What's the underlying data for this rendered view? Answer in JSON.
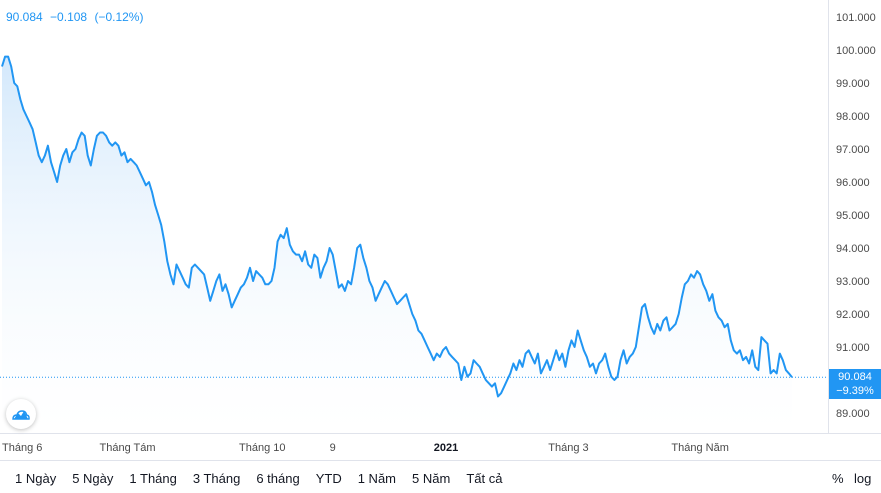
{
  "legend": {
    "value": "90.084",
    "change": "−0.108",
    "change_pct": "(−0.12%)"
  },
  "price_tag": {
    "value": "90.084",
    "change": "−9.39%"
  },
  "toolbar": {
    "ranges": [
      "1 Ngày",
      "5 Ngày",
      "1 Tháng",
      "3 Tháng",
      "6 tháng",
      "YTD",
      "1 Năm",
      "5 Năm",
      "Tất cả"
    ],
    "percent_label": "%",
    "log_label": "log"
  },
  "colors": {
    "line": "#2196f3",
    "fill_top": "#cfe6fb",
    "tag": "#2196f3"
  },
  "chart_data": {
    "type": "area",
    "title": "",
    "xlabel": "",
    "ylabel": "",
    "ylim": [
      88.5,
      101.3
    ],
    "y_ticks": [
      "101.000",
      "100.000",
      "99.000",
      "98.000",
      "97.000",
      "96.000",
      "95.000",
      "94.000",
      "93.000",
      "92.000",
      "91.000",
      "90.000",
      "89.000"
    ],
    "x_ticks": [
      {
        "label": "Tháng 6",
        "index": 0
      },
      {
        "label": "Tháng Tám",
        "index": 41
      },
      {
        "label": "Tháng 10",
        "index": 85
      },
      {
        "label": "9",
        "index": 108
      },
      {
        "label": "2021",
        "index": 145,
        "bold": true
      },
      {
        "label": "Tháng 3",
        "index": 185
      },
      {
        "label": "Tháng Năm",
        "index": 228
      }
    ],
    "last_value": 90.084,
    "series": [
      {
        "values": [
          99.5,
          99.8,
          99.8,
          99.5,
          99.0,
          98.9,
          98.5,
          98.2,
          98.0,
          97.8,
          97.6,
          97.2,
          96.8,
          96.6,
          96.8,
          97.1,
          96.6,
          96.3,
          96.0,
          96.5,
          96.8,
          97.0,
          96.6,
          96.9,
          97.0,
          97.3,
          97.5,
          97.4,
          96.8,
          96.5,
          97.0,
          97.4,
          97.5,
          97.5,
          97.4,
          97.2,
          97.1,
          97.2,
          97.1,
          96.8,
          96.9,
          96.6,
          96.7,
          96.6,
          96.5,
          96.3,
          96.1,
          95.9,
          96.0,
          95.7,
          95.3,
          95.0,
          94.7,
          94.2,
          93.6,
          93.2,
          92.9,
          93.5,
          93.3,
          93.1,
          92.9,
          92.8,
          93.4,
          93.5,
          93.4,
          93.3,
          93.2,
          92.8,
          92.4,
          92.7,
          93.0,
          93.2,
          92.7,
          92.9,
          92.6,
          92.2,
          92.4,
          92.6,
          92.8,
          92.9,
          93.1,
          93.4,
          93.0,
          93.3,
          93.2,
          93.1,
          92.9,
          92.9,
          93.0,
          93.4,
          94.2,
          94.4,
          94.3,
          94.6,
          94.1,
          93.9,
          93.8,
          93.8,
          93.6,
          93.9,
          93.5,
          93.4,
          93.8,
          93.7,
          93.1,
          93.4,
          93.6,
          94.0,
          93.8,
          93.3,
          92.8,
          92.9,
          92.7,
          93.0,
          92.9,
          93.4,
          94.0,
          94.1,
          93.7,
          93.4,
          93.0,
          92.8,
          92.4,
          92.6,
          92.8,
          93.0,
          92.9,
          92.7,
          92.5,
          92.3,
          92.4,
          92.5,
          92.6,
          92.3,
          92.0,
          91.8,
          91.5,
          91.4,
          91.2,
          91.0,
          90.8,
          90.6,
          90.8,
          90.7,
          90.9,
          91.0,
          90.8,
          90.7,
          90.6,
          90.5,
          90.0,
          90.4,
          90.1,
          90.2,
          90.6,
          90.5,
          90.4,
          90.2,
          90.0,
          89.9,
          89.8,
          89.9,
          89.5,
          89.6,
          89.8,
          90.0,
          90.2,
          90.5,
          90.3,
          90.6,
          90.4,
          90.8,
          90.9,
          90.7,
          90.5,
          90.8,
          90.2,
          90.4,
          90.6,
          90.3,
          90.6,
          90.9,
          90.6,
          90.8,
          90.4,
          90.9,
          91.2,
          91.0,
          91.5,
          91.2,
          90.9,
          90.7,
          90.4,
          90.5,
          90.2,
          90.5,
          90.6,
          90.8,
          90.4,
          90.1,
          90.0,
          90.1,
          90.6,
          90.9,
          90.5,
          90.7,
          90.8,
          91.0,
          91.6,
          92.2,
          92.3,
          91.9,
          91.6,
          91.4,
          91.7,
          91.5,
          91.8,
          91.9,
          91.5,
          91.6,
          91.7,
          92.0,
          92.5,
          92.9,
          93.0,
          93.2,
          93.1,
          93.3,
          93.2,
          92.9,
          92.7,
          92.4,
          92.6,
          92.1,
          91.9,
          91.8,
          91.6,
          91.7,
          91.2,
          90.9,
          90.8,
          90.9,
          90.6,
          90.7,
          90.5,
          90.9,
          90.4,
          90.3,
          91.3,
          91.2,
          91.1,
          90.2,
          90.3,
          90.2,
          90.8,
          90.6,
          90.3,
          90.2,
          90.084
        ]
      }
    ]
  }
}
